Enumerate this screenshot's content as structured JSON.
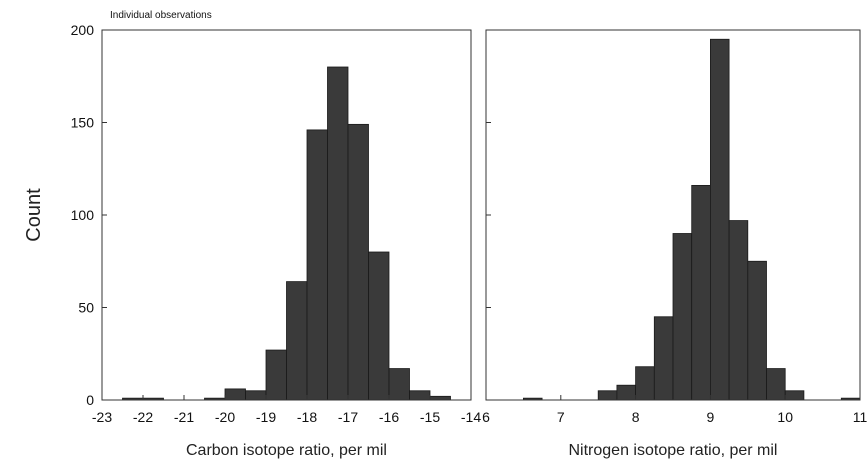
{
  "figure": {
    "ylabel": "Count",
    "annotation": "Individual observations"
  },
  "chart_data": [
    {
      "type": "bar",
      "xlabel": "Carbon isotope ratio, per mil",
      "ylabel": "Count",
      "xlim": [
        -23,
        -14
      ],
      "ylim": [
        0,
        200
      ],
      "xticks": [
        -23,
        -22,
        -21,
        -20,
        -19,
        -18,
        -17,
        -16,
        -15,
        -14
      ],
      "yticks": [
        0,
        50,
        100,
        150,
        200
      ],
      "bin_width": 0.5,
      "bin_starts": [
        -22.5,
        -22.0,
        -21.5,
        -21.0,
        -20.5,
        -20.0,
        -19.5,
        -19.0,
        -18.5,
        -18.0,
        -17.5,
        -17.0,
        -16.5,
        -16.0,
        -15.5,
        -15.0,
        -14.5
      ],
      "values": [
        1,
        1,
        0,
        0,
        1,
        6,
        5,
        27,
        64,
        146,
        180,
        149,
        80,
        17,
        5,
        2,
        0
      ],
      "bar_color": "#3a3a3a",
      "grid": false
    },
    {
      "type": "bar",
      "xlabel": "Nitrogen isotope ratio, per mil",
      "xlim": [
        6,
        11
      ],
      "ylim": [
        0,
        200
      ],
      "xticks": [
        6,
        7,
        8,
        9,
        10,
        11
      ],
      "bin_width": 0.25,
      "bin_starts": [
        6.5,
        6.75,
        7.0,
        7.25,
        7.5,
        7.75,
        8.0,
        8.25,
        8.5,
        8.75,
        9.0,
        9.25,
        9.5,
        9.75,
        10.0,
        10.25,
        10.5,
        10.75
      ],
      "values": [
        1,
        0,
        0,
        0,
        5,
        8,
        18,
        45,
        90,
        116,
        195,
        97,
        75,
        17,
        5,
        0,
        0,
        1
      ],
      "bar_color": "#3a3a3a",
      "grid": false
    }
  ]
}
